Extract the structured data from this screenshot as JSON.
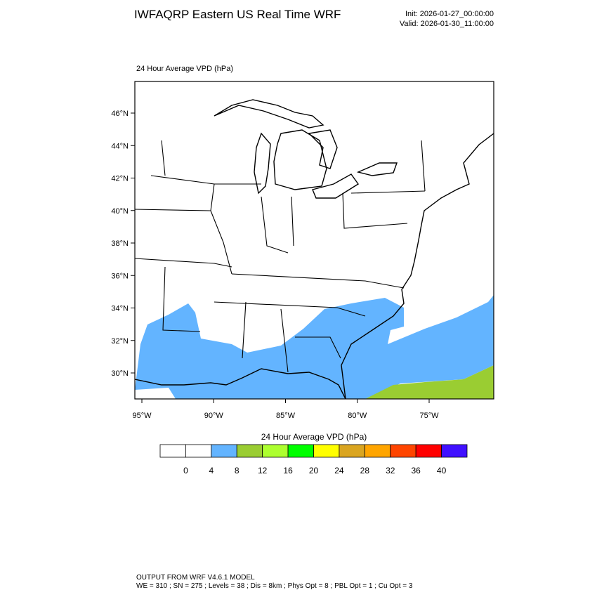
{
  "header": {
    "title": "IWFAQRP Eastern US Real Time WRF",
    "init": "Init: 2026-01-27_00:00:00",
    "valid": "Valid: 2026-01-30_11:00:00"
  },
  "map": {
    "title": "24 Hour Average VPD   (hPa)",
    "lat_ticks": [
      {
        "value": 46,
        "label": "46°N"
      },
      {
        "value": 44,
        "label": "44°N"
      },
      {
        "value": 42,
        "label": "42°N"
      },
      {
        "value": 40,
        "label": "40°N"
      },
      {
        "value": 38,
        "label": "38°N"
      },
      {
        "value": 36,
        "label": "36°N"
      },
      {
        "value": 34,
        "label": "34°N"
      },
      {
        "value": 32,
        "label": "32°N"
      },
      {
        "value": 30,
        "label": "30°N"
      }
    ],
    "lon_ticks": [
      {
        "value": -95,
        "label": "95°W"
      },
      {
        "value": -90,
        "label": "90°W"
      },
      {
        "value": -85,
        "label": "85°W"
      },
      {
        "value": -80,
        "label": "80°W"
      },
      {
        "value": -75,
        "label": "75°W"
      }
    ]
  },
  "colorbar": {
    "title": "24 Hour Average VPD  (hPa)",
    "levels": [
      0,
      4,
      8,
      12,
      16,
      20,
      24,
      28,
      32,
      36,
      40
    ],
    "colors": [
      "#ffffff",
      "#ffffff",
      "#63b4ff",
      "#9acd32",
      "#adff2f",
      "#00ff00",
      "#ffff00",
      "#daa520",
      "#ffa500",
      "#ff4500",
      "#ff0000",
      "#4010ff"
    ]
  },
  "footer": {
    "line1": "OUTPUT FROM WRF V4.6.1 MODEL",
    "line2": "WE = 310 ; SN = 275 ; Levels = 38 ; Dis = 8km ; Phys Opt = 8 ; PBL Opt = 1 ; Cu Opt = 3"
  }
}
